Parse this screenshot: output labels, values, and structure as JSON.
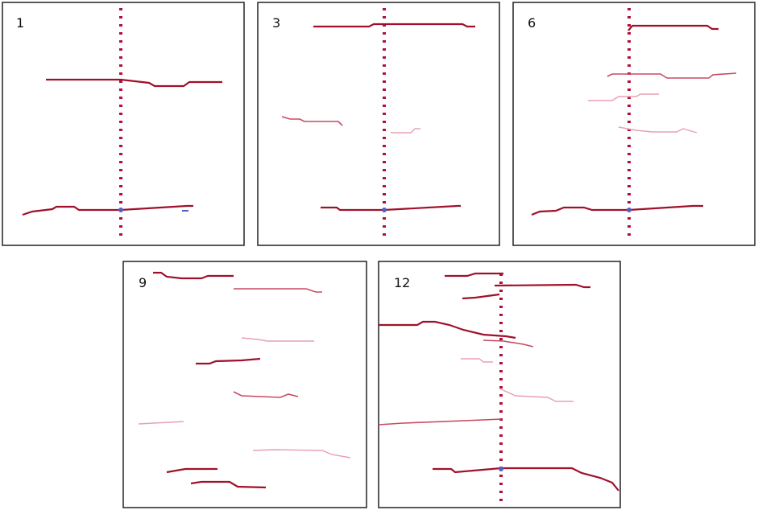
{
  "panels": [
    {
      "label": "1"
    },
    {
      "label": "3"
    },
    {
      "label": "6"
    },
    {
      "label": "9"
    },
    {
      "label": "12"
    }
  ]
}
